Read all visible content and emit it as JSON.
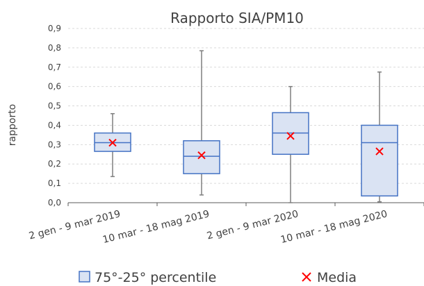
{
  "chart_data": {
    "type": "box",
    "title": "Rapporto SIA/PM10",
    "ylabel": "rapporto",
    "xlabel": "",
    "ylim": [
      0,
      0.9
    ],
    "yticks": [
      "0,0",
      "0,1",
      "0,2",
      "0,3",
      "0,4",
      "0,5",
      "0,6",
      "0,7",
      "0,8",
      "0,9"
    ],
    "grid": true,
    "categories": [
      "2 gen - 9 mar 2019",
      "10 mar - 18 mag 2019",
      "2 gen - 9 mar 2020",
      "10 mar - 18 mag 2020"
    ],
    "boxes": [
      {
        "min": 0.135,
        "q1": 0.265,
        "median": 0.31,
        "q3": 0.36,
        "max": 0.46,
        "mean": 0.31
      },
      {
        "min": 0.04,
        "q1": 0.15,
        "median": 0.24,
        "q3": 0.32,
        "max": 0.785,
        "mean": 0.245
      },
      {
        "min": 0.0,
        "q1": 0.25,
        "median": 0.36,
        "q3": 0.465,
        "max": 0.6,
        "mean": 0.345
      },
      {
        "min": 0.005,
        "q1": 0.035,
        "median": 0.31,
        "q3": 0.4,
        "max": 0.675,
        "mean": 0.265
      }
    ],
    "legend": [
      {
        "label": "75°-25° percentile",
        "marker": "box"
      },
      {
        "label": "Media",
        "marker": "x"
      }
    ],
    "legend_position": "bottom",
    "colors": {
      "box_fill": "#dae3f3",
      "box_stroke": "#4472c4",
      "whisker": "#7f7f7f",
      "mean_marker": "#ff0000",
      "grid": "#d9d9d9",
      "axis": "#595959"
    }
  }
}
